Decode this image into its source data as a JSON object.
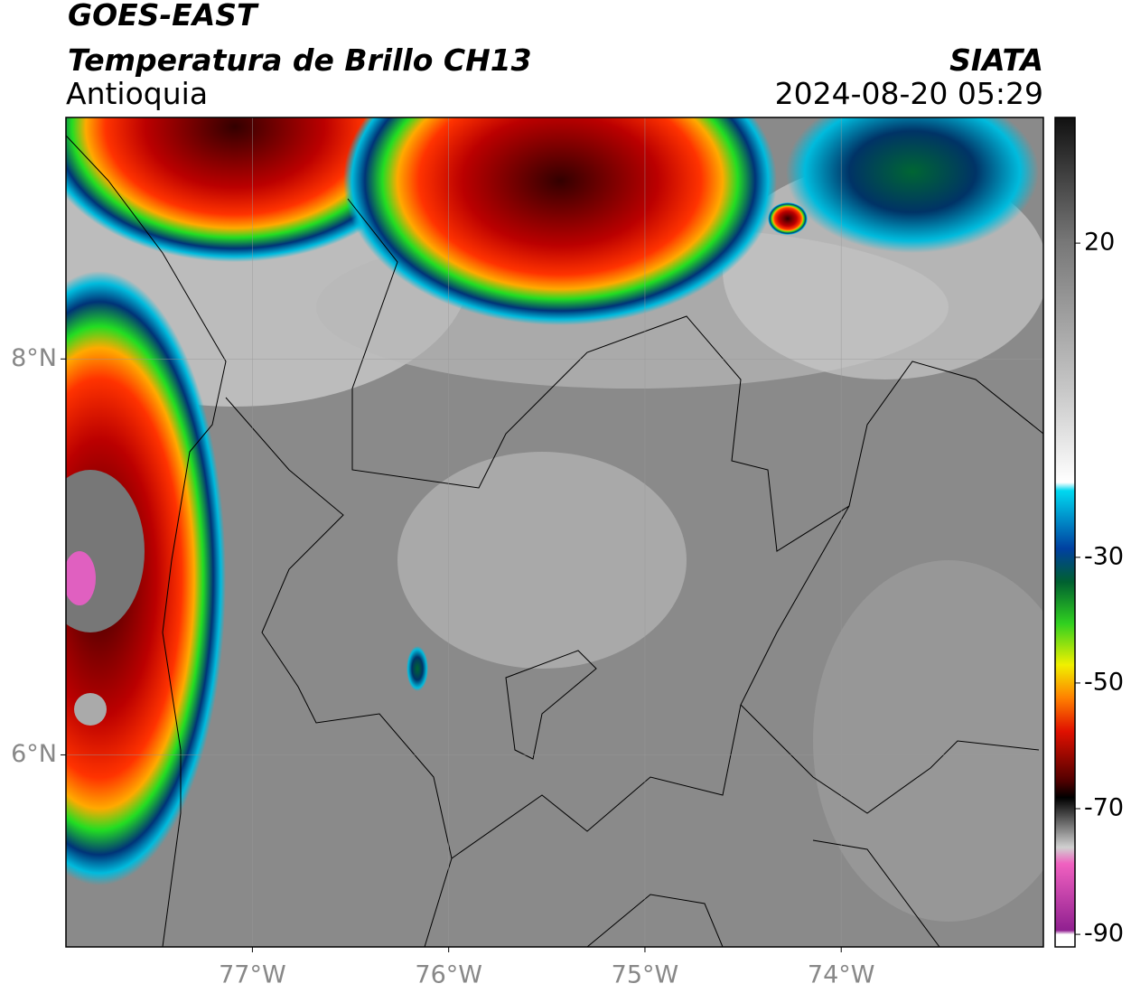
{
  "header": {
    "title": "GOES-EAST",
    "subtitle": "Temperatura de Brillo CH13",
    "region": "Antioquia",
    "source": "SIATA",
    "datetime": "2024-08-20 05:29"
  },
  "map": {
    "xlim": [
      -77.95,
      -72.97
    ],
    "ylim": [
      5.03,
      9.22
    ],
    "xticks": [
      {
        "value": -77,
        "label": "77°W"
      },
      {
        "value": -76,
        "label": "76°W"
      },
      {
        "value": -75,
        "label": "75°W"
      },
      {
        "value": -74,
        "label": "74°W"
      }
    ],
    "yticks": [
      {
        "value": 8,
        "label": "8°N"
      },
      {
        "value": 6,
        "label": "6°N"
      }
    ],
    "grid": true
  },
  "colorbar": {
    "lim": [
      -92,
      40
    ],
    "ticks": [
      20,
      -30,
      -50,
      -70,
      -90
    ]
  }
}
